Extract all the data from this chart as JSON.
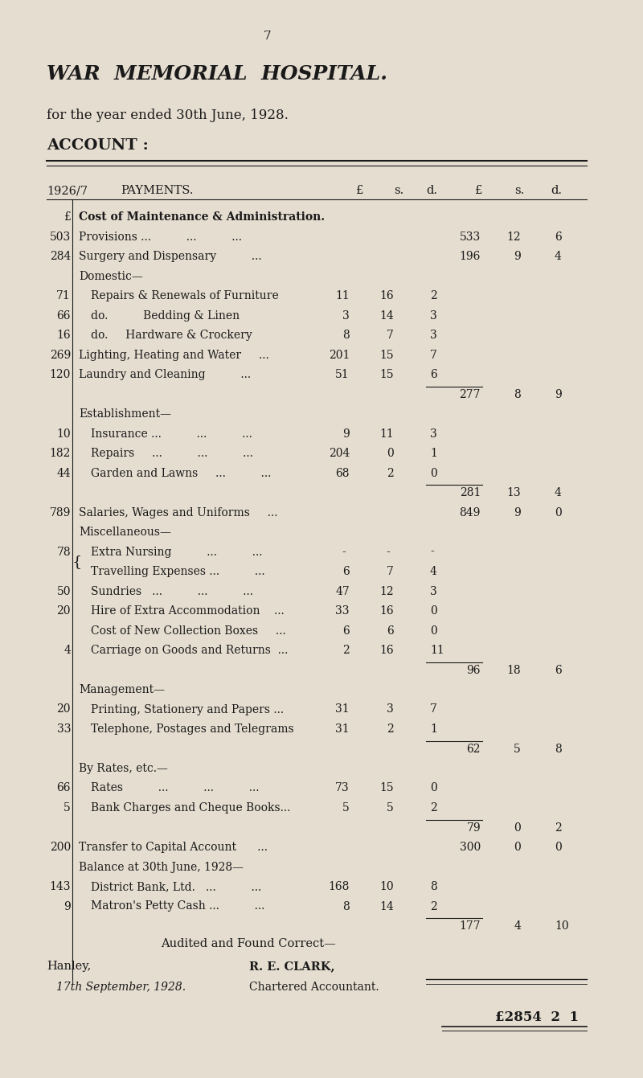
{
  "bg_color": "#e5ddd0",
  "text_color": "#1a1a1a",
  "page_number": "7",
  "title": "WAR  MEMORIAL  HOSPITAL.",
  "subtitle": "for the year ended 30th June, 1928.",
  "account_label": "ACCOUNT :",
  "rows": [
    {
      "prev": "£",
      "desc": "Cost of Maintenance & Administration.",
      "indent": 0,
      "c1": "",
      "c2": "",
      "c3": "",
      "C1": "",
      "C2": "",
      "C3": "",
      "subtotal": false,
      "bold": true
    },
    {
      "prev": "503",
      "desc": "Provisions ...          ...          ...",
      "indent": 0,
      "c1": "",
      "c2": "",
      "c3": "",
      "C1": "533",
      "C2": "12",
      "C3": "6",
      "subtotal": false,
      "bold": false
    },
    {
      "prev": "284",
      "desc": "Surgery and Dispensary          ...",
      "indent": 0,
      "c1": "",
      "c2": "",
      "c3": "",
      "C1": "196",
      "C2": "9",
      "C3": "4",
      "subtotal": false,
      "bold": false
    },
    {
      "prev": "",
      "desc": "Domestic—",
      "indent": 0,
      "c1": "",
      "c2": "",
      "c3": "",
      "C1": "",
      "C2": "",
      "C3": "",
      "subtotal": false,
      "bold": false
    },
    {
      "prev": "71",
      "desc": "Repairs & Renewals of Furniture",
      "indent": 1,
      "c1": "11",
      "c2": "16",
      "c3": "2",
      "C1": "",
      "C2": "",
      "C3": "",
      "subtotal": false,
      "bold": false
    },
    {
      "prev": "66",
      "desc": "do.          Bedding & Linen",
      "indent": 1,
      "c1": "3",
      "c2": "14",
      "c3": "3",
      "C1": "",
      "C2": "",
      "C3": "",
      "subtotal": false,
      "bold": false
    },
    {
      "prev": "16",
      "desc": "do.     Hardware & Crockery",
      "indent": 1,
      "c1": "8",
      "c2": "7",
      "c3": "3",
      "C1": "",
      "C2": "",
      "C3": "",
      "subtotal": false,
      "bold": false
    },
    {
      "prev": "269",
      "desc": "Lighting, Heating and Water     ...",
      "indent": 0,
      "c1": "201",
      "c2": "15",
      "c3": "7",
      "C1": "",
      "C2": "",
      "C3": "",
      "subtotal": false,
      "bold": false
    },
    {
      "prev": "120",
      "desc": "Laundry and Cleaning          ...",
      "indent": 0,
      "c1": "51",
      "c2": "15",
      "c3": "6",
      "C1": "",
      "C2": "",
      "C3": "",
      "subtotal": false,
      "bold": false
    },
    {
      "prev": "",
      "desc": "",
      "indent": 0,
      "c1": "",
      "c2": "",
      "c3": "",
      "C1": "277",
      "C2": "8",
      "C3": "9",
      "subtotal": true,
      "bold": false
    },
    {
      "prev": "",
      "desc": "Establishment—",
      "indent": 0,
      "c1": "",
      "c2": "",
      "c3": "",
      "C1": "",
      "C2": "",
      "C3": "",
      "subtotal": false,
      "bold": false
    },
    {
      "prev": "10",
      "desc": "Insurance ...          ...          ...",
      "indent": 1,
      "c1": "9",
      "c2": "11",
      "c3": "3",
      "C1": "",
      "C2": "",
      "C3": "",
      "subtotal": false,
      "bold": false
    },
    {
      "prev": "182",
      "desc": "Repairs     ...          ...          ...",
      "indent": 1,
      "c1": "204",
      "c2": "0",
      "c3": "1",
      "C1": "",
      "C2": "",
      "C3": "",
      "subtotal": false,
      "bold": false
    },
    {
      "prev": "44",
      "desc": "Garden and Lawns     ...          ...",
      "indent": 1,
      "c1": "68",
      "c2": "2",
      "c3": "0",
      "C1": "",
      "C2": "",
      "C3": "",
      "subtotal": false,
      "bold": false
    },
    {
      "prev": "",
      "desc": "",
      "indent": 0,
      "c1": "",
      "c2": "",
      "c3": "",
      "C1": "281",
      "C2": "13",
      "C3": "4",
      "subtotal": true,
      "bold": false
    },
    {
      "prev": "789",
      "desc": "Salaries, Wages and Uniforms     ...",
      "indent": 0,
      "c1": "",
      "c2": "",
      "c3": "",
      "C1": "849",
      "C2": "9",
      "C3": "0",
      "subtotal": false,
      "bold": false
    },
    {
      "prev": "",
      "desc": "Miscellaneous—",
      "indent": 0,
      "c1": "",
      "c2": "",
      "c3": "",
      "C1": "",
      "C2": "",
      "C3": "",
      "subtotal": false,
      "bold": false
    },
    {
      "prev": "78{",
      "desc": "Extra Nursing          ...          ...",
      "indent": 1,
      "c1": "- ",
      "c2": "- ",
      "c3": "-",
      "C1": "",
      "C2": "",
      "C3": "",
      "subtotal": false,
      "bold": false
    },
    {
      "prev": "",
      "desc": "Travelling Expenses ...          ...",
      "indent": 1,
      "c1": "6",
      "c2": "7",
      "c3": "4",
      "C1": "",
      "C2": "",
      "C3": "",
      "subtotal": false,
      "bold": false
    },
    {
      "prev": "50",
      "desc": "Sundries   ...          ...          ...",
      "indent": 1,
      "c1": "47",
      "c2": "12",
      "c3": "3",
      "C1": "",
      "C2": "",
      "C3": "",
      "subtotal": false,
      "bold": false
    },
    {
      "prev": "20",
      "desc": "Hire of Extra Accommodation    ...",
      "indent": 1,
      "c1": "33",
      "c2": "16",
      "c3": "0",
      "C1": "",
      "C2": "",
      "C3": "",
      "subtotal": false,
      "bold": false
    },
    {
      "prev": "",
      "desc": "Cost of New Collection Boxes     ...",
      "indent": 1,
      "c1": "6",
      "c2": "6",
      "c3": "0",
      "C1": "",
      "C2": "",
      "C3": "",
      "subtotal": false,
      "bold": false
    },
    {
      "prev": "4",
      "desc": "Carriage on Goods and Returns  ...",
      "indent": 1,
      "c1": "2",
      "c2": "16",
      "c3": "11",
      "C1": "",
      "C2": "",
      "C3": "",
      "subtotal": false,
      "bold": false
    },
    {
      "prev": "",
      "desc": "",
      "indent": 0,
      "c1": "",
      "c2": "",
      "c3": "",
      "C1": "96",
      "C2": "18",
      "C3": "6",
      "subtotal": true,
      "bold": false
    },
    {
      "prev": "",
      "desc": "Management—",
      "indent": 0,
      "c1": "",
      "c2": "",
      "c3": "",
      "C1": "",
      "C2": "",
      "C3": "",
      "subtotal": false,
      "bold": false
    },
    {
      "prev": "20",
      "desc": "Printing, Stationery and Papers ...",
      "indent": 1,
      "c1": "31",
      "c2": "3",
      "c3": "7",
      "C1": "",
      "C2": "",
      "C3": "",
      "subtotal": false,
      "bold": false
    },
    {
      "prev": "33",
      "desc": "Telephone, Postages and Telegrams",
      "indent": 1,
      "c1": "31",
      "c2": "2",
      "c3": "1",
      "C1": "",
      "C2": "",
      "C3": "",
      "subtotal": false,
      "bold": false
    },
    {
      "prev": "",
      "desc": "",
      "indent": 0,
      "c1": "",
      "c2": "",
      "c3": "",
      "C1": "62",
      "C2": "5",
      "C3": "8",
      "subtotal": true,
      "bold": false
    },
    {
      "prev": "",
      "desc": "By Rates, etc.—",
      "indent": 0,
      "c1": "",
      "c2": "",
      "c3": "",
      "C1": "",
      "C2": "",
      "C3": "",
      "subtotal": false,
      "bold": false
    },
    {
      "prev": "66",
      "desc": "Rates          ...          ...          ...",
      "indent": 1,
      "c1": "73",
      "c2": "15",
      "c3": "0",
      "C1": "",
      "C2": "",
      "C3": "",
      "subtotal": false,
      "bold": false
    },
    {
      "prev": "5",
      "desc": "Bank Charges and Cheque Books...",
      "indent": 1,
      "c1": "5",
      "c2": "5",
      "c3": "2",
      "C1": "",
      "C2": "",
      "C3": "",
      "subtotal": false,
      "bold": false
    },
    {
      "prev": "",
      "desc": "",
      "indent": 0,
      "c1": "",
      "c2": "",
      "c3": "",
      "C1": "79",
      "C2": "0",
      "C3": "2",
      "subtotal": true,
      "bold": false
    },
    {
      "prev": "200",
      "desc": "Transfer to Capital Account      ...",
      "indent": 0,
      "c1": "",
      "c2": "",
      "c3": "",
      "C1": "300",
      "C2": "0",
      "C3": "0",
      "subtotal": false,
      "bold": false
    },
    {
      "prev": "",
      "desc": "Balance at 30th June, 1928—",
      "indent": 0,
      "c1": "",
      "c2": "",
      "c3": "",
      "C1": "",
      "C2": "",
      "C3": "",
      "subtotal": false,
      "bold": false
    },
    {
      "prev": "143",
      "desc": "District Bank, Ltd.   ...          ...",
      "indent": 1,
      "c1": "168",
      "c2": "10",
      "c3": "8",
      "C1": "",
      "C2": "",
      "C3": "",
      "subtotal": false,
      "bold": false
    },
    {
      "prev": "9",
      "desc": "Matron's Petty Cash ...          ...",
      "indent": 1,
      "c1": "8",
      "c2": "14",
      "c3": "2",
      "C1": "",
      "C2": "",
      "C3": "",
      "subtotal": false,
      "bold": false
    },
    {
      "prev": "",
      "desc": "",
      "indent": 0,
      "c1": "",
      "c2": "",
      "c3": "",
      "C1": "177",
      "C2": "4",
      "C3": "10",
      "subtotal": true,
      "bold": false
    }
  ],
  "footer1": "Audited and Found Correct—",
  "footer2l": "Hanley,",
  "footer2r": "R. E. CLARK,",
  "footer3l": "17th September, 1928.",
  "footer3r": "Chartered Accountant.",
  "total": "£2854  2  1"
}
